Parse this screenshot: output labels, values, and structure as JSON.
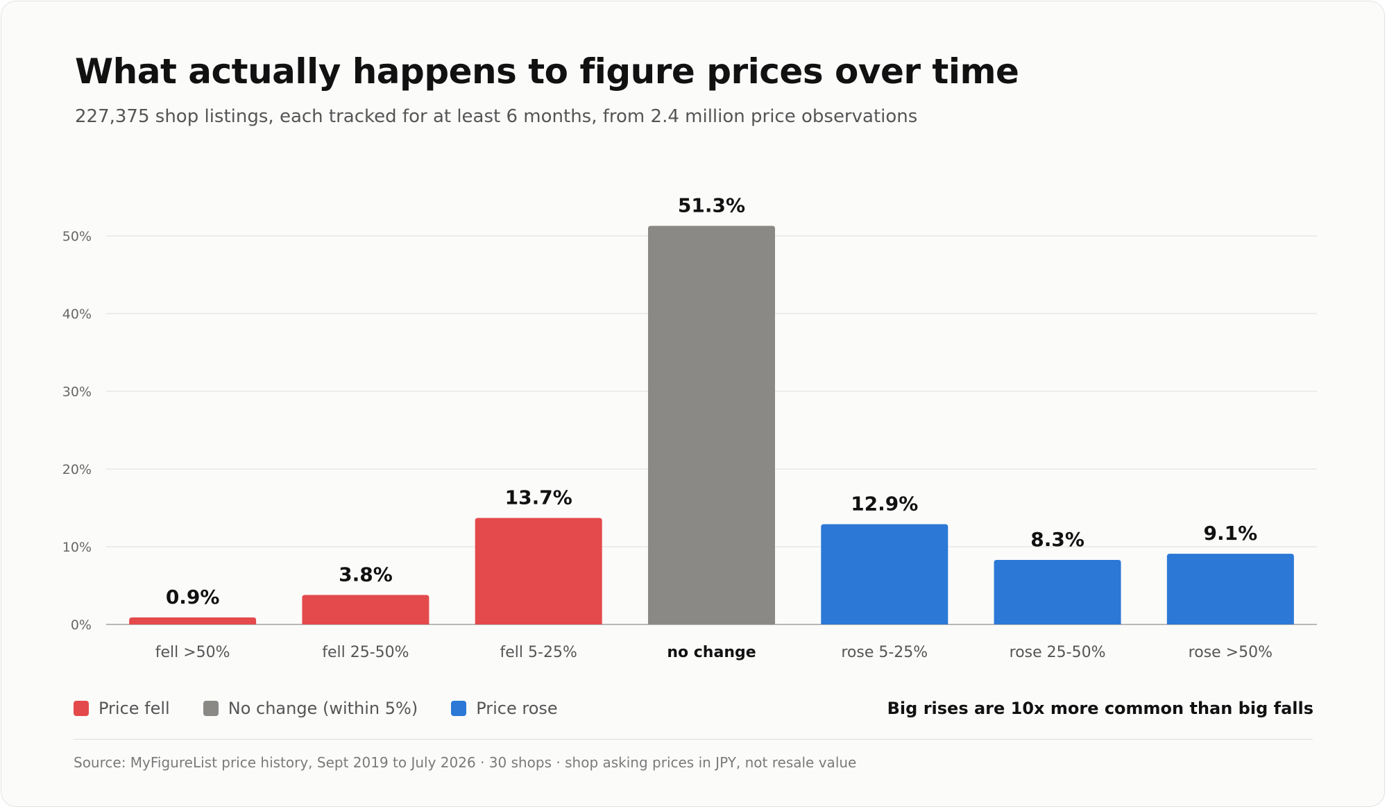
{
  "header": {
    "title": "What actually happens to figure prices over time",
    "subtitle": "227,375 shop listings, each tracked for at least 6 months, from 2.4 million price observations"
  },
  "legend": {
    "items": [
      {
        "label": "Price fell",
        "color": "#e44a4b"
      },
      {
        "label": "No change (within 5%)",
        "color": "#8a8985"
      },
      {
        "label": "Price rose",
        "color": "#2b78d6"
      }
    ]
  },
  "callout": "Big rises are 10x more common than big falls",
  "source": "Source: MyFigureList price history, Sept 2019 to July 2026 · 30 shops · shop asking prices in JPY, not resale value",
  "chart_data": {
    "type": "bar",
    "categories": [
      "fell >50%",
      "fell 25-50%",
      "fell 5-25%",
      "no change",
      "rose 5-25%",
      "rose 25-50%",
      "rose >50%"
    ],
    "values": [
      0.9,
      3.8,
      13.7,
      51.3,
      12.9,
      8.3,
      9.1
    ],
    "value_labels": [
      "0.9%",
      "3.8%",
      "13.7%",
      "51.3%",
      "12.9%",
      "8.3%",
      "9.1%"
    ],
    "bar_colors": [
      "#e44a4b",
      "#e44a4b",
      "#e44a4b",
      "#8a8985",
      "#2b78d6",
      "#2b78d6",
      "#2b78d6"
    ],
    "highlighted_category": "no change",
    "yticks": [
      0,
      10,
      20,
      30,
      40,
      50
    ],
    "ytick_labels": [
      "0%",
      "10%",
      "20%",
      "30%",
      "40%",
      "50%"
    ],
    "ylim": [
      0,
      50
    ],
    "grid": true
  }
}
